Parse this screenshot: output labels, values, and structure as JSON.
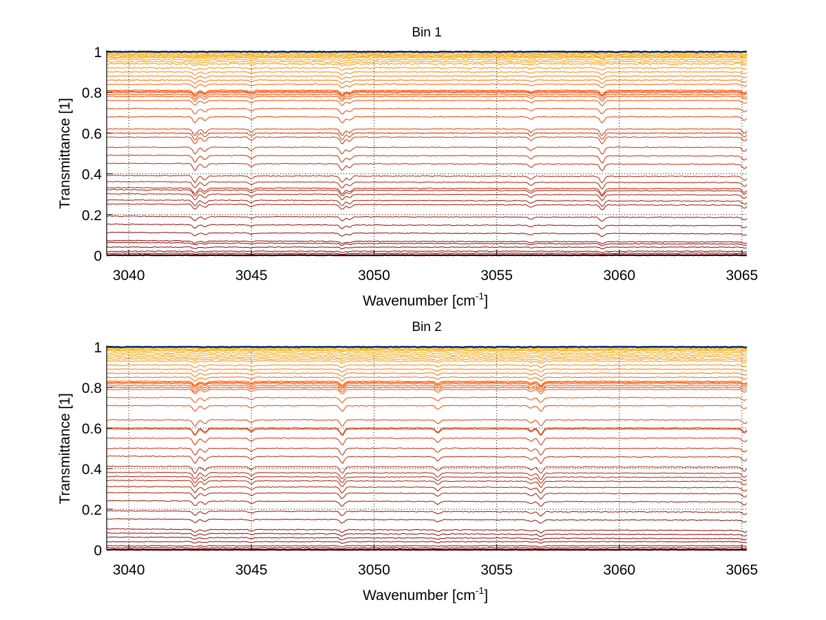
{
  "chart_data": [
    {
      "type": "line",
      "title": "Bin 1",
      "xlabel": "Wavenumber [cm",
      "xlabel_superscript": "-1",
      "xlabel_suffix": "]",
      "ylabel": "Transmittance [1]",
      "xlim": [
        3039.1,
        3065.2
      ],
      "ylim": [
        0,
        1
      ],
      "xticks": [
        3040,
        3045,
        3050,
        3055,
        3060,
        3065
      ],
      "xtick_labels": [
        "3040",
        "3045",
        "3050",
        "3055",
        "3060",
        "3065"
      ],
      "yticks": [
        0,
        0.2,
        0.4,
        0.6,
        0.8,
        1
      ],
      "ytick_labels": [
        "0",
        "0.2",
        "0.4",
        "0.6",
        "0.8",
        "1"
      ],
      "grid": "dotted",
      "absorption_lines_cm-1": [
        3042.7,
        3043.1,
        3045.0,
        3048.7,
        3049.0,
        3056.4,
        3059.3,
        3065.1
      ],
      "series_levels": [
        1.0,
        0.995,
        0.99,
        0.985,
        0.98,
        0.975,
        0.97,
        0.96,
        0.95,
        0.94,
        0.92,
        0.9,
        0.88,
        0.86,
        0.84,
        0.81,
        0.805,
        0.8,
        0.79,
        0.78,
        0.76,
        0.72,
        0.68,
        0.62,
        0.6,
        0.58,
        0.53,
        0.49,
        0.45,
        0.39,
        0.36,
        0.33,
        0.32,
        0.3,
        0.27,
        0.25,
        0.19,
        0.15,
        0.11,
        0.07,
        0.06,
        0.04,
        0.02,
        0.01,
        0.0
      ]
    },
    {
      "type": "line",
      "title": "Bin 2",
      "xlabel": "Wavenumber [cm",
      "xlabel_superscript": "-1",
      "xlabel_suffix": "]",
      "ylabel": "Transmittance [1]",
      "xlim": [
        3039.1,
        3065.2
      ],
      "ylim": [
        0,
        1
      ],
      "xticks": [
        3040,
        3045,
        3050,
        3055,
        3060,
        3065
      ],
      "xtick_labels": [
        "3040",
        "3045",
        "3050",
        "3055",
        "3060",
        "3065"
      ],
      "yticks": [
        0,
        0.2,
        0.4,
        0.6,
        0.8,
        1
      ],
      "ytick_labels": [
        "0",
        "0.2",
        "0.4",
        "0.6",
        "0.8",
        "1"
      ],
      "grid": "dotted",
      "absorption_lines_cm-1": [
        3042.7,
        3043.1,
        3045.0,
        3048.7,
        3052.6,
        3056.4,
        3056.8,
        3065.1
      ],
      "series_levels": [
        1.0,
        0.995,
        0.99,
        0.985,
        0.98,
        0.97,
        0.96,
        0.95,
        0.94,
        0.93,
        0.91,
        0.89,
        0.87,
        0.85,
        0.83,
        0.825,
        0.82,
        0.81,
        0.8,
        0.79,
        0.75,
        0.71,
        0.64,
        0.6,
        0.595,
        0.55,
        0.5,
        0.46,
        0.41,
        0.38,
        0.36,
        0.34,
        0.31,
        0.28,
        0.24,
        0.19,
        0.15,
        0.1,
        0.08,
        0.06,
        0.04,
        0.02,
        0.01,
        0.0
      ]
    }
  ],
  "colors": {
    "top_line": "#00237a",
    "high": "#ffb000",
    "mid": "#ff4a00",
    "low": "#8b0000",
    "grid": "#000000"
  }
}
